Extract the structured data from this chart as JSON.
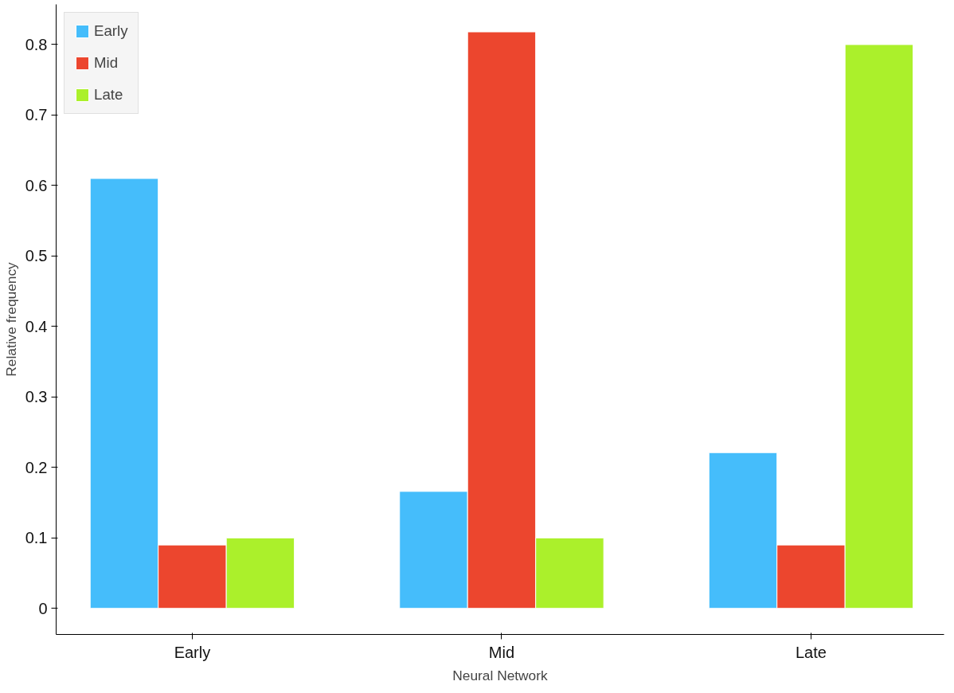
{
  "chart_data": {
    "type": "bar",
    "xlabel": "Neural Network",
    "ylabel": "Relative frequency",
    "categories": [
      "Early",
      "Mid",
      "Late"
    ],
    "series": [
      {
        "name": "Early",
        "color": "#45bdfb",
        "values": [
          0.61,
          0.166,
          0.221
        ]
      },
      {
        "name": "Mid",
        "color": "#ec462e",
        "values": [
          0.09,
          0.818,
          0.09
        ]
      },
      {
        "name": "Late",
        "color": "#abf02b",
        "values": [
          0.1,
          0.1,
          0.8
        ]
      }
    ],
    "ylim": [
      -0.037,
      0.857
    ],
    "yticks": [
      0,
      0.1,
      0.2,
      0.3,
      0.4,
      0.5,
      0.6,
      0.7,
      0.8
    ],
    "grid": false,
    "legend": "top left"
  }
}
